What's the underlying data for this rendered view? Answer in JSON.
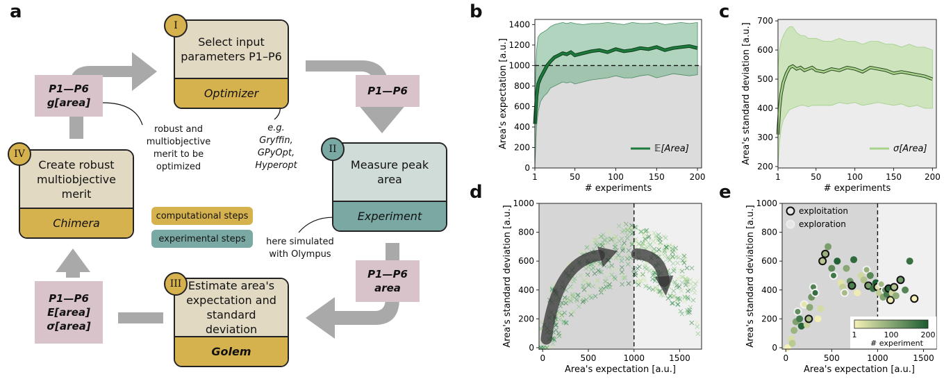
{
  "panel_labels": {
    "a": "a",
    "b": "b",
    "c": "c",
    "d": "d",
    "e": "e"
  },
  "workflow": {
    "step1": {
      "num": "I",
      "title": "Select input parameters P1–P6",
      "tool": "Optimizer"
    },
    "step2": {
      "num": "II",
      "title": "Measure peak area",
      "tool": "Experiment"
    },
    "step3": {
      "num": "III",
      "title": "Estimate area's expectation and standard deviation",
      "tool": "Golem"
    },
    "step4": {
      "num": "IV",
      "title": "Create robust multiobjective merit",
      "tool": "Chimera"
    },
    "papers": {
      "top_left": {
        "line1": "P1—P6",
        "line2": "g[area]"
      },
      "top_right": {
        "line1": "P1—P6"
      },
      "bottom_right": {
        "line1": "P1—P6",
        "line2": "area"
      },
      "bottom_left": {
        "line1": "P1—P6",
        "line2": "E[area]",
        "line3": "σ[area]"
      }
    },
    "notes": {
      "merit": "robust and multiobjective merit to be optimized",
      "optimizers": "e.g. Gryffin, GPyOpt, Hyperopt",
      "simulated": "here simulated with Olympus"
    },
    "legend": {
      "computational": "computational steps",
      "experimental": "experimental steps"
    },
    "colors": {
      "computational": "#d6b24e",
      "experimental": "#7aa9a4",
      "step_top": "#e2d9c2",
      "exp_top": "#cfdcd8",
      "paper": "#d9c3ca",
      "arrow": "#a9a9a9"
    }
  },
  "chart_data": [
    {
      "panel": "b",
      "type": "line",
      "xlabel": "# experiments",
      "ylabel": "Area's expectation [a.u.]",
      "xlim": [
        1,
        205
      ],
      "ylim": [
        0,
        1450
      ],
      "xticks": [
        1,
        50,
        100,
        150,
        200
      ],
      "yticks": [
        0,
        200,
        400,
        600,
        800,
        1000,
        1200,
        1400
      ],
      "reference_line": 1000,
      "series": [
        {
          "name": "𝔼[Area]",
          "color": "#1c7a3a",
          "x": [
            1,
            3,
            5,
            8,
            12,
            16,
            20,
            25,
            30,
            35,
            40,
            45,
            50,
            60,
            70,
            80,
            90,
            100,
            110,
            120,
            130,
            140,
            150,
            160,
            170,
            180,
            190,
            200
          ],
          "mean": [
            430,
            700,
            820,
            880,
            940,
            1000,
            1040,
            1080,
            1100,
            1120,
            1110,
            1130,
            1100,
            1120,
            1140,
            1150,
            1130,
            1160,
            1140,
            1150,
            1170,
            1160,
            1180,
            1150,
            1170,
            1180,
            1190,
            1170
          ],
          "upper": [
            700,
            1150,
            1280,
            1310,
            1330,
            1350,
            1380,
            1400,
            1410,
            1420,
            1410,
            1420,
            1410,
            1400,
            1410,
            1410,
            1420,
            1410,
            1400,
            1420,
            1410,
            1410,
            1420,
            1400,
            1410,
            1420,
            1410,
            1420
          ],
          "lower": [
            0,
            400,
            550,
            650,
            700,
            730,
            780,
            800,
            820,
            840,
            830,
            840,
            820,
            840,
            860,
            870,
            880,
            900,
            880,
            880,
            900,
            910,
            880,
            900,
            920,
            910,
            900,
            910
          ]
        }
      ]
    },
    {
      "panel": "c",
      "type": "line",
      "xlabel": "# experiments",
      "ylabel": "Area's standard deviation [a.u.]",
      "xlim": [
        1,
        205
      ],
      "ylim": [
        195,
        705
      ],
      "xticks": [
        1,
        50,
        100,
        150,
        200
      ],
      "yticks": [
        200,
        300,
        400,
        500,
        600,
        700
      ],
      "series": [
        {
          "name": "σ[Area]",
          "color": "#a9d38a",
          "x": [
            1,
            3,
            5,
            8,
            12,
            16,
            20,
            25,
            30,
            35,
            40,
            45,
            50,
            60,
            70,
            80,
            90,
            100,
            110,
            120,
            130,
            140,
            150,
            160,
            170,
            180,
            190,
            200
          ],
          "mean": [
            310,
            400,
            450,
            490,
            520,
            540,
            545,
            535,
            540,
            530,
            535,
            540,
            530,
            525,
            535,
            530,
            540,
            535,
            525,
            540,
            535,
            530,
            520,
            525,
            520,
            515,
            510,
            500
          ],
          "upper": [
            540,
            600,
            630,
            650,
            670,
            680,
            680,
            660,
            650,
            650,
            640,
            640,
            640,
            630,
            630,
            640,
            630,
            630,
            620,
            630,
            630,
            620,
            620,
            610,
            620,
            610,
            610,
            600
          ],
          "lower": [
            200,
            280,
            330,
            360,
            380,
            395,
            400,
            405,
            410,
            410,
            405,
            410,
            410,
            410,
            410,
            420,
            415,
            420,
            410,
            415,
            420,
            415,
            410,
            415,
            405,
            410,
            400,
            400
          ]
        }
      ]
    },
    {
      "panel": "d",
      "type": "scatter",
      "xlabel": "Area's expectation [a.u.]",
      "ylabel": "Area's standard deviation [a.u.]",
      "xlim": [
        -40,
        1740
      ],
      "ylim": [
        -10,
        1000
      ],
      "xticks": [
        0,
        500,
        1000,
        1500
      ],
      "yticks": [
        0,
        200,
        400,
        600,
        800,
        1000
      ],
      "reference_line": 1000,
      "marker": "x"
    },
    {
      "panel": "e",
      "type": "scatter",
      "xlabel": "Area's expectation [a.u.]",
      "ylabel": "Area's standard deviation [a.u.]",
      "xlim": [
        -40,
        1640
      ],
      "ylim": [
        -10,
        1000
      ],
      "xticks": [
        0,
        500,
        1000,
        1500
      ],
      "yticks": [
        0,
        200,
        400,
        600,
        800,
        1000
      ],
      "reference_line": 1000,
      "legend": [
        {
          "name": "exploitation",
          "edge": "#111"
        },
        {
          "name": "exploration",
          "edge": "#eee"
        }
      ],
      "colorbar": {
        "label": "# experiment",
        "ticks": [
          "1",
          "100",
          "200"
        ],
        "colors": [
          "#f6f1b8",
          "#1a5c30"
        ]
      },
      "points": [
        [
          20,
          0
        ],
        [
          60,
          60
        ],
        [
          70,
          30
        ],
        [
          90,
          120
        ],
        [
          110,
          180
        ],
        [
          130,
          250
        ],
        [
          150,
          200
        ],
        [
          170,
          150
        ],
        [
          200,
          300
        ],
        [
          230,
          160
        ],
        [
          250,
          200
        ],
        [
          260,
          280
        ],
        [
          280,
          350
        ],
        [
          300,
          420
        ],
        [
          320,
          380
        ],
        [
          350,
          200
        ],
        [
          380,
          270
        ],
        [
          400,
          600
        ],
        [
          430,
          650
        ],
        [
          460,
          700
        ],
        [
          500,
          550
        ],
        [
          520,
          500
        ],
        [
          560,
          600
        ],
        [
          600,
          450
        ],
        [
          620,
          420
        ],
        [
          640,
          380
        ],
        [
          660,
          550
        ],
        [
          700,
          460
        ],
        [
          720,
          430
        ],
        [
          740,
          610
        ],
        [
          780,
          380
        ],
        [
          820,
          500
        ],
        [
          850,
          470
        ],
        [
          880,
          540
        ],
        [
          900,
          430
        ],
        [
          920,
          500
        ],
        [
          950,
          410
        ],
        [
          980,
          450
        ],
        [
          1000,
          420
        ],
        [
          1020,
          380
        ],
        [
          1040,
          440
        ],
        [
          1060,
          350
        ],
        [
          1080,
          400
        ],
        [
          1100,
          370
        ],
        [
          1120,
          410
        ],
        [
          1140,
          330
        ],
        [
          1160,
          380
        ],
        [
          1180,
          420
        ],
        [
          1200,
          360
        ],
        [
          1250,
          470
        ],
        [
          1300,
          400
        ],
        [
          1350,
          600
        ],
        [
          1400,
          340
        ]
      ],
      "exploitation_idx": [
        10,
        17,
        18,
        28,
        34,
        38,
        44,
        45,
        47,
        49,
        52
      ],
      "exploration_idx": [
        5,
        8,
        13,
        14,
        21,
        25,
        33,
        40,
        42
      ]
    }
  ]
}
